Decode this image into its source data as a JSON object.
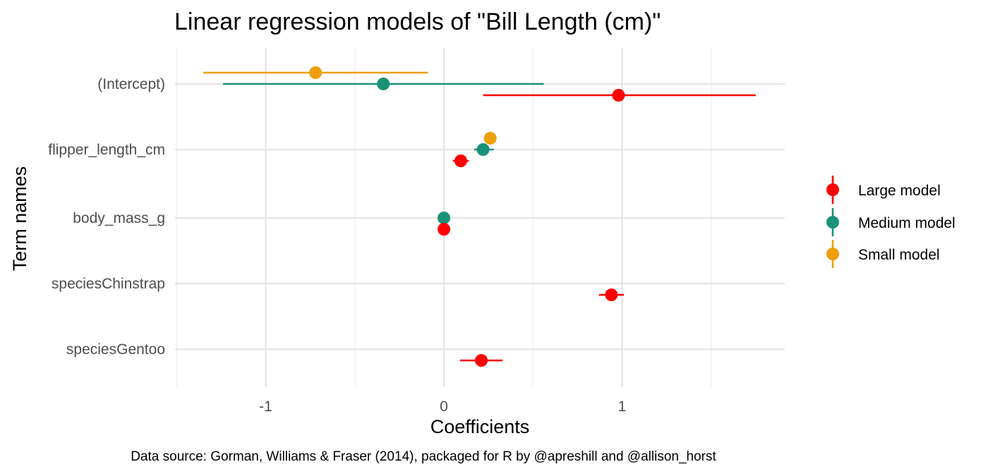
{
  "chart_data": {
    "type": "scatter",
    "subtype": "coefficient-plot",
    "title": "Linear regression models of \"Bill Length (cm)\"",
    "xlabel": "Coefficients",
    "ylabel": "Term names",
    "caption": "Data source: Gorman, Williams & Fraser (2014), packaged for R by @apreshill and @allison_horst",
    "xlim": [
      -1.5,
      1.8
    ],
    "xticks": [
      -1,
      0,
      1
    ],
    "xtick_labels": [
      "-1",
      "0",
      "1"
    ],
    "terms": [
      "(Intercept)",
      "flipper_length_cm",
      "body_mass_g",
      "speciesChinstrap",
      "speciesGentoo"
    ],
    "grid": true,
    "legend_position": "right",
    "series": [
      {
        "name": "Large model",
        "color": "#ff0000",
        "points": [
          {
            "term": "(Intercept)",
            "estimate": 0.98,
            "low": 0.22,
            "high": 1.75
          },
          {
            "term": "flipper_length_cm",
            "estimate": 0.095,
            "low": 0.05,
            "high": 0.14
          },
          {
            "term": "body_mass_g",
            "estimate": 0.0,
            "low": 0.0,
            "high": 0.0
          },
          {
            "term": "speciesChinstrap",
            "estimate": 0.94,
            "low": 0.87,
            "high": 1.01
          },
          {
            "term": "speciesGentoo",
            "estimate": 0.21,
            "low": 0.09,
            "high": 0.33
          }
        ]
      },
      {
        "name": "Medium model",
        "color": "#1a9278",
        "points": [
          {
            "term": "(Intercept)",
            "estimate": -0.34,
            "low": -1.24,
            "high": 0.56
          },
          {
            "term": "flipper_length_cm",
            "estimate": 0.22,
            "low": 0.17,
            "high": 0.28
          },
          {
            "term": "body_mass_g",
            "estimate": 0.0,
            "low": 0.0,
            "high": 0.0
          }
        ]
      },
      {
        "name": "Small model",
        "color": "#ee9e0b",
        "points": [
          {
            "term": "(Intercept)",
            "estimate": -0.72,
            "low": -1.35,
            "high": -0.09
          },
          {
            "term": "flipper_length_cm",
            "estimate": 0.26,
            "low": 0.24,
            "high": 0.28
          }
        ]
      }
    ]
  }
}
